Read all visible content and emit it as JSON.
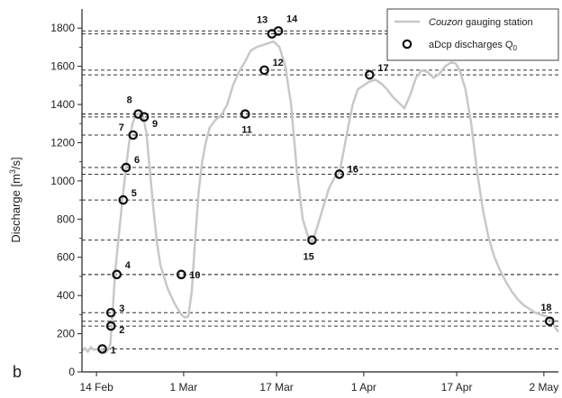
{
  "chart_data": {
    "type": "line",
    "panel_label": "b",
    "ylabel_main": "Discharge [m",
    "ylabel_sup": "3",
    "ylabel_tail": "/s]",
    "ylim": [
      0,
      1900
    ],
    "yticks": [
      "0",
      "200",
      "400",
      "600",
      "800",
      "1000",
      "1200",
      "1400",
      "1600",
      "1800"
    ],
    "xticks": [
      {
        "day": 14,
        "label": "14 Feb"
      },
      {
        "day": 29,
        "label": "1 Mar"
      },
      {
        "day": 45,
        "label": "17 Mar"
      },
      {
        "day": 60,
        "label": "1 Apr"
      },
      {
        "day": 76,
        "label": "17 Apr"
      },
      {
        "day": 91,
        "label": "2 May"
      }
    ],
    "xlim": [
      11.5,
      93.5
    ],
    "grid": false,
    "legend_position": "top-right",
    "legend": {
      "line_name": "Couzon",
      "line_suffix": " gauging station",
      "points_prefix": "aDcp discharges Q",
      "points_sub": "0"
    },
    "colors": {
      "line": "#c8c8c8",
      "points": "#111111",
      "dashed": "#333333"
    },
    "series": [
      {
        "kind": "line",
        "points": [
          [
            11.5,
            110
          ],
          [
            12.0,
            125
          ],
          [
            12.5,
            105
          ],
          [
            13.0,
            130
          ],
          [
            13.5,
            115
          ],
          [
            14.0,
            120
          ],
          [
            14.5,
            110
          ],
          [
            15.0,
            118
          ],
          [
            15.5,
            100
          ],
          [
            16.0,
            115
          ],
          [
            16.4,
            150
          ],
          [
            16.8,
            320
          ],
          [
            17.2,
            520
          ],
          [
            17.8,
            700
          ],
          [
            18.4,
            880
          ],
          [
            19.0,
            1050
          ],
          [
            19.6,
            1200
          ],
          [
            20.2,
            1300
          ],
          [
            20.8,
            1345
          ],
          [
            21.4,
            1355
          ],
          [
            22.0,
            1340
          ],
          [
            22.6,
            1250
          ],
          [
            23.2,
            1050
          ],
          [
            23.8,
            850
          ],
          [
            24.4,
            680
          ],
          [
            25.0,
            560
          ],
          [
            25.6,
            500
          ],
          [
            26.2,
            440
          ],
          [
            26.8,
            400
          ],
          [
            27.4,
            360
          ],
          [
            28.0,
            330
          ],
          [
            28.6,
            300
          ],
          [
            29.2,
            285
          ],
          [
            29.8,
            290
          ],
          [
            30.4,
            420
          ],
          [
            31.0,
            700
          ],
          [
            31.6,
            950
          ],
          [
            32.2,
            1100
          ],
          [
            32.8,
            1200
          ],
          [
            33.5,
            1280
          ],
          [
            34.5,
            1320
          ],
          [
            35.5,
            1345
          ],
          [
            36.5,
            1400
          ],
          [
            37.5,
            1500
          ],
          [
            38.5,
            1570
          ],
          [
            39.5,
            1620
          ],
          [
            40.5,
            1680
          ],
          [
            41.5,
            1700
          ],
          [
            42.5,
            1710
          ],
          [
            43.5,
            1720
          ],
          [
            44.5,
            1730
          ],
          [
            45.5,
            1700
          ],
          [
            46.5,
            1600
          ],
          [
            47.5,
            1400
          ],
          [
            48.5,
            1050
          ],
          [
            49.5,
            800
          ],
          [
            50.5,
            700
          ],
          [
            51.2,
            680
          ],
          [
            52.0,
            760
          ],
          [
            53.0,
            860
          ],
          [
            54.0,
            960
          ],
          [
            55.0,
            1020
          ],
          [
            55.8,
            1040
          ],
          [
            56.5,
            1150
          ],
          [
            57.3,
            1280
          ],
          [
            58.1,
            1400
          ],
          [
            59.0,
            1480
          ],
          [
            60.0,
            1500
          ],
          [
            61.0,
            1520
          ],
          [
            62.0,
            1530
          ],
          [
            63.0,
            1510
          ],
          [
            64.0,
            1480
          ],
          [
            65.0,
            1440
          ],
          [
            66.0,
            1410
          ],
          [
            67.0,
            1380
          ],
          [
            68.0,
            1450
          ],
          [
            69.0,
            1540
          ],
          [
            70.0,
            1580
          ],
          [
            71.0,
            1570
          ],
          [
            72.0,
            1540
          ],
          [
            73.0,
            1560
          ],
          [
            74.0,
            1600
          ],
          [
            75.0,
            1620
          ],
          [
            75.8,
            1615
          ],
          [
            76.5,
            1580
          ],
          [
            77.5,
            1480
          ],
          [
            78.5,
            1300
          ],
          [
            79.5,
            1050
          ],
          [
            80.5,
            850
          ],
          [
            81.5,
            700
          ],
          [
            82.5,
            600
          ],
          [
            83.5,
            530
          ],
          [
            84.5,
            470
          ],
          [
            85.5,
            420
          ],
          [
            86.5,
            380
          ],
          [
            87.5,
            350
          ],
          [
            88.5,
            330
          ],
          [
            89.5,
            310
          ],
          [
            90.5,
            300
          ],
          [
            91.5,
            290
          ],
          [
            92.5,
            260
          ],
          [
            93.0,
            230
          ],
          [
            93.5,
            210
          ]
        ]
      },
      {
        "kind": "points",
        "points": [
          {
            "n": "1",
            "day": 15.0,
            "q": 120
          },
          {
            "n": "2",
            "day": 16.5,
            "q": 240
          },
          {
            "n": "3",
            "day": 16.5,
            "q": 310
          },
          {
            "n": "4",
            "day": 17.5,
            "q": 510
          },
          {
            "n": "5",
            "day": 18.6,
            "q": 900
          },
          {
            "n": "6",
            "day": 19.1,
            "q": 1070
          },
          {
            "n": "7",
            "day": 20.3,
            "q": 1240
          },
          {
            "n": "8",
            "day": 21.2,
            "q": 1350
          },
          {
            "n": "9",
            "day": 22.2,
            "q": 1335
          },
          {
            "n": "10",
            "day": 28.6,
            "q": 510
          },
          {
            "n": "11",
            "day": 39.6,
            "q": 1350
          },
          {
            "n": "12",
            "day": 42.9,
            "q": 1580
          },
          {
            "n": "13",
            "day": 44.2,
            "q": 1770
          },
          {
            "n": "14",
            "day": 45.3,
            "q": 1785
          },
          {
            "n": "15",
            "day": 51.1,
            "q": 690
          },
          {
            "n": "16",
            "day": 55.8,
            "q": 1035
          },
          {
            "n": "17",
            "day": 61.0,
            "q": 1555
          },
          {
            "n": "18",
            "day": 92.0,
            "q": 265
          }
        ]
      }
    ]
  }
}
